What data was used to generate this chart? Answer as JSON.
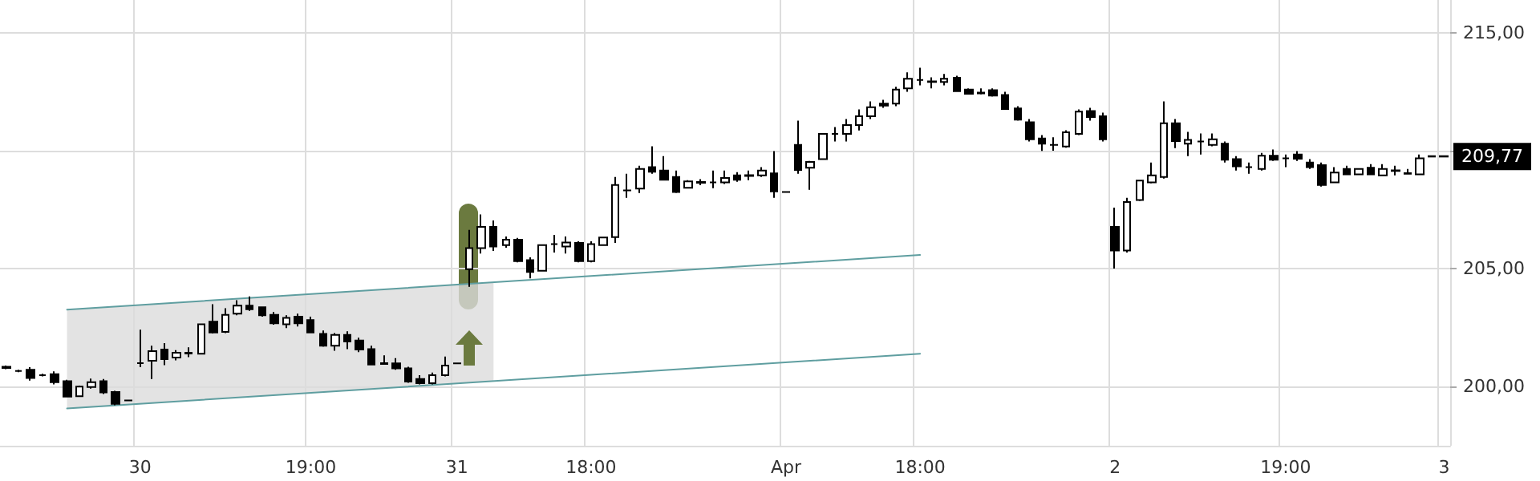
{
  "chart_data": {
    "type": "candlestick",
    "grid": true,
    "categories": [
      null,
      null,
      null,
      null,
      null,
      null,
      null,
      null,
      null,
      null,
      null,
      "30",
      null,
      null,
      null,
      null,
      null,
      null,
      null,
      null,
      null,
      null,
      null,
      null,
      null,
      "19:00",
      null,
      null,
      null,
      null,
      null,
      null,
      null,
      null,
      null,
      null,
      null,
      "31",
      null,
      null,
      null,
      null,
      null,
      null,
      null,
      null,
      null,
      null,
      "18:00",
      null,
      null,
      null,
      null,
      null,
      null,
      null,
      null,
      null,
      null,
      null,
      null,
      null,
      null,
      null,
      "Apr",
      null,
      null,
      null,
      null,
      null,
      null,
      null,
      null,
      null,
      null,
      "18:00",
      null,
      null,
      null,
      null,
      null,
      null,
      null,
      null,
      null,
      null,
      null,
      null,
      null,
      null,
      null,
      "2",
      null,
      null,
      null,
      null,
      null,
      null,
      null,
      null,
      null,
      null,
      null,
      null,
      null,
      "19:00",
      null,
      null,
      null,
      null,
      null,
      null,
      null,
      null,
      null,
      null,
      null,
      null,
      "3"
    ],
    "ylim": [
      197.5,
      216.4
    ],
    "yticks": [
      {
        "value": 200,
        "label": "200,00"
      },
      {
        "value": 205,
        "label": "205,00"
      },
      {
        "value": 210,
        "label": null
      },
      {
        "value": 215,
        "label": "215,00"
      }
    ],
    "annotations": [
      "209,77"
    ],
    "series": [
      {
        "type": "line",
        "color": "#5f9ea0",
        "values": [
          null,
          null,
          null,
          null,
          null,
          203.27,
          null,
          null,
          null,
          null,
          null,
          null,
          null,
          null,
          null,
          null,
          null,
          null,
          null,
          null,
          null,
          null,
          null,
          null,
          null,
          null,
          null,
          null,
          null,
          null,
          null,
          null,
          null,
          null,
          null,
          null,
          null,
          null,
          null,
          null,
          null,
          null,
          null,
          null,
          null,
          null,
          null,
          null,
          null,
          null,
          null,
          null,
          null,
          null,
          null,
          null,
          null,
          null,
          null,
          null,
          null,
          null,
          null,
          null,
          null,
          null,
          null,
          null,
          null,
          null,
          null,
          null,
          null,
          null,
          null,
          205.59,
          null,
          null,
          null,
          null,
          null,
          null,
          null,
          null,
          null,
          null,
          null,
          null,
          null,
          null,
          null,
          null,
          null,
          null,
          null,
          null,
          null,
          null,
          null,
          null,
          null,
          null,
          null,
          null,
          null,
          null,
          null,
          null,
          null,
          null,
          null,
          null,
          null,
          null,
          null,
          null,
          null,
          null,
          null
        ]
      },
      {
        "type": "line",
        "color": "#5f9ea0",
        "values": [
          null,
          null,
          null,
          null,
          null,
          199.08,
          null,
          null,
          null,
          null,
          null,
          null,
          null,
          null,
          null,
          null,
          null,
          null,
          null,
          null,
          null,
          null,
          null,
          null,
          null,
          null,
          null,
          null,
          null,
          null,
          null,
          null,
          null,
          null,
          null,
          null,
          null,
          null,
          null,
          null,
          null,
          null,
          null,
          null,
          null,
          null,
          null,
          null,
          null,
          null,
          null,
          null,
          null,
          null,
          null,
          null,
          null,
          null,
          null,
          null,
          null,
          null,
          null,
          null,
          null,
          null,
          null,
          null,
          null,
          null,
          null,
          null,
          null,
          null,
          null,
          201.4,
          null,
          null,
          null,
          null,
          null,
          null,
          null,
          null,
          null,
          null,
          null,
          null,
          null,
          null,
          null,
          null,
          null,
          null,
          null,
          null,
          null,
          null,
          null,
          null,
          null,
          null,
          null,
          null,
          null,
          null,
          null,
          null,
          null,
          null,
          null,
          null,
          null,
          null,
          null,
          null,
          null,
          null,
          null
        ],
        "lower": [
          null,
          null,
          null,
          null,
          null,
          199.08,
          null,
          null,
          null,
          null,
          null,
          null,
          null,
          null,
          null,
          null,
          null,
          null,
          null,
          null,
          null,
          null,
          null,
          null,
          null,
          null,
          null,
          null,
          null,
          null,
          null,
          null,
          null,
          null,
          null,
          null,
          null,
          null,
          null,
          null,
          200.24,
          null,
          null,
          null,
          null,
          null,
          null,
          null,
          null,
          null,
          null,
          null,
          null,
          null,
          null,
          null,
          null,
          null,
          null,
          null,
          null,
          null,
          null,
          null,
          null,
          null,
          null,
          null,
          null,
          null,
          null,
          null,
          null,
          null,
          null,
          null,
          null,
          null,
          null,
          null,
          null,
          null,
          null,
          null,
          null,
          null,
          null,
          null,
          null,
          null,
          null,
          null,
          null,
          null,
          null,
          null,
          null,
          null,
          null,
          null,
          null,
          null,
          null,
          null,
          null,
          null,
          null,
          null,
          null,
          null,
          null,
          null,
          null,
          null,
          null,
          null,
          null,
          null,
          null
        ],
        "upper": [
          null,
          null,
          null,
          null,
          null,
          203.27,
          null,
          null,
          null,
          null,
          null,
          null,
          null,
          null,
          null,
          null,
          null,
          null,
          null,
          null,
          null,
          null,
          null,
          null,
          null,
          null,
          null,
          null,
          null,
          null,
          null,
          null,
          null,
          null,
          null,
          null,
          null,
          null,
          null,
          null,
          204.43,
          null,
          null,
          null,
          null,
          null,
          null,
          null,
          null,
          null,
          null,
          null,
          null,
          null,
          null,
          null,
          null,
          null,
          null,
          null,
          null,
          null,
          null,
          null,
          null,
          null,
          null,
          null,
          null,
          null,
          null,
          null,
          null,
          null,
          null,
          null,
          null,
          null,
          null,
          null,
          null,
          null,
          null,
          null,
          null,
          null,
          null,
          null,
          null,
          null,
          null,
          null,
          null,
          null,
          null,
          null,
          null,
          null,
          null,
          null,
          null,
          null,
          null,
          null,
          null,
          null,
          null,
          null,
          null,
          null,
          null,
          null,
          null,
          null,
          null,
          null,
          null,
          null,
          null
        ]
      },
      {
        "type": "candlestick",
        "color": "#000000",
        "ohlc": [
          [
            200.85,
            200.9,
            200.75,
            200.8
          ],
          [
            200.67,
            200.72,
            200.62,
            200.67
          ],
          [
            200.72,
            200.83,
            200.26,
            200.37
          ],
          [
            200.49,
            200.55,
            200.44,
            200.49
          ],
          [
            200.53,
            200.65,
            200.1,
            200.19
          ],
          [
            200.24,
            200.3,
            199.55,
            199.58
          ],
          [
            199.6,
            200.05,
            199.58,
            200.01
          ],
          [
            199.99,
            200.35,
            199.92,
            200.19
          ],
          [
            200.24,
            200.33,
            199.69,
            199.76
          ],
          [
            199.78,
            199.83,
            199.22,
            199.28
          ],
          [
            199.42,
            199.42,
            199.42,
            199.42
          ],
          [
            201.0,
            202.42,
            200.83,
            201.0
          ],
          [
            201.1,
            201.74,
            200.33,
            201.51
          ],
          [
            201.58,
            201.85,
            200.92,
            201.17
          ],
          [
            201.24,
            201.55,
            201.12,
            201.44
          ],
          [
            201.44,
            201.67,
            201.26,
            201.41
          ],
          [
            201.4,
            202.65,
            201.4,
            202.65
          ],
          [
            202.76,
            203.5,
            202.26,
            202.3
          ],
          [
            202.33,
            203.33,
            202.28,
            203.05
          ],
          [
            203.1,
            203.67,
            203.03,
            203.44
          ],
          [
            203.44,
            203.83,
            203.22,
            203.29
          ],
          [
            203.37,
            203.4,
            202.97,
            203.03
          ],
          [
            203.05,
            203.17,
            202.63,
            202.69
          ],
          [
            202.65,
            203.03,
            202.49,
            202.92
          ],
          [
            202.97,
            203.1,
            202.56,
            202.69
          ],
          [
            202.83,
            202.97,
            202.28,
            202.3
          ],
          [
            202.24,
            202.39,
            201.7,
            201.74
          ],
          [
            201.74,
            202.28,
            201.53,
            202.2
          ],
          [
            202.2,
            202.35,
            201.6,
            201.92
          ],
          [
            201.96,
            202.08,
            201.47,
            201.58
          ],
          [
            201.6,
            201.74,
            200.92,
            200.94
          ],
          [
            201.0,
            201.33,
            200.97,
            200.97
          ],
          [
            200.99,
            201.21,
            200.72,
            200.78
          ],
          [
            200.78,
            200.85,
            200.17,
            200.22
          ],
          [
            200.33,
            200.49,
            200.1,
            200.15
          ],
          [
            200.15,
            200.6,
            200.1,
            200.49
          ],
          [
            200.49,
            201.28,
            200.44,
            200.9
          ],
          [
            200.99,
            200.99,
            200.99,
            200.99
          ],
          [
            204.99,
            206.65,
            204.24,
            205.88
          ],
          [
            205.88,
            207.31,
            205.65,
            206.78
          ],
          [
            206.78,
            207.05,
            205.76,
            205.95
          ],
          [
            206.01,
            206.37,
            205.9,
            206.24
          ],
          [
            206.24,
            206.31,
            205.28,
            205.33
          ],
          [
            205.37,
            205.49,
            204.6,
            204.87
          ],
          [
            204.92,
            206.01,
            204.92,
            206.01
          ],
          [
            206.05,
            206.44,
            205.69,
            206.05
          ],
          [
            205.95,
            206.37,
            205.65,
            206.12
          ],
          [
            206.1,
            206.17,
            205.28,
            205.33
          ],
          [
            205.33,
            206.17,
            205.28,
            206.05
          ],
          [
            206.01,
            206.33,
            206.01,
            206.33
          ],
          [
            206.35,
            208.9,
            206.1,
            208.56
          ],
          [
            208.33,
            209.03,
            208.01,
            208.33
          ],
          [
            208.4,
            209.37,
            208.22,
            209.24
          ],
          [
            209.31,
            210.2,
            209.03,
            209.12
          ],
          [
            209.17,
            209.78,
            208.76,
            208.78
          ],
          [
            208.9,
            209.17,
            208.22,
            208.26
          ],
          [
            208.44,
            208.76,
            208.42,
            208.71
          ],
          [
            208.68,
            208.8,
            208.55,
            208.65
          ],
          [
            208.67,
            209.17,
            208.42,
            208.67
          ],
          [
            208.67,
            209.17,
            208.6,
            208.85
          ],
          [
            208.96,
            209.1,
            208.69,
            208.78
          ],
          [
            208.97,
            209.17,
            208.76,
            208.94
          ],
          [
            208.96,
            209.31,
            208.9,
            209.17
          ],
          [
            209.05,
            209.99,
            208.01,
            208.28
          ],
          [
            208.26,
            208.26,
            208.26,
            208.26
          ],
          [
            210.26,
            211.28,
            209.03,
            209.19
          ],
          [
            209.29,
            209.58,
            208.35,
            209.53
          ],
          [
            209.65,
            210.72,
            209.65,
            210.72
          ],
          [
            210.72,
            211.01,
            210.4,
            210.72
          ],
          [
            210.72,
            211.35,
            210.4,
            211.1
          ],
          [
            211.1,
            211.76,
            210.87,
            211.47
          ],
          [
            211.47,
            212.1,
            211.35,
            211.85
          ],
          [
            212.01,
            212.17,
            211.83,
            211.92
          ],
          [
            212.01,
            212.72,
            211.9,
            212.6
          ],
          [
            212.65,
            213.33,
            212.51,
            213.06
          ],
          [
            213.01,
            213.53,
            212.78,
            213.01
          ],
          [
            212.95,
            213.12,
            212.65,
            212.92
          ],
          [
            212.92,
            213.26,
            212.78,
            213.06
          ],
          [
            213.1,
            213.19,
            212.51,
            212.53
          ],
          [
            212.6,
            212.65,
            212.4,
            212.42
          ],
          [
            212.47,
            212.65,
            212.4,
            212.44
          ],
          [
            212.58,
            212.65,
            212.3,
            212.35
          ],
          [
            212.37,
            212.51,
            211.76,
            211.78
          ],
          [
            211.8,
            211.9,
            211.28,
            211.33
          ],
          [
            211.22,
            211.35,
            210.4,
            210.49
          ],
          [
            210.53,
            210.67,
            210.0,
            210.31
          ],
          [
            210.26,
            210.58,
            210.01,
            210.26
          ],
          [
            210.19,
            210.88,
            210.14,
            210.79
          ],
          [
            210.72,
            211.76,
            210.67,
            211.67
          ],
          [
            211.69,
            211.83,
            211.28,
            211.44
          ],
          [
            211.47,
            211.62,
            210.4,
            210.49
          ],
          [
            206.78,
            207.6,
            205.01,
            205.78
          ],
          [
            205.78,
            208.01,
            205.69,
            207.83
          ],
          [
            207.92,
            208.78,
            207.88,
            208.74
          ],
          [
            208.67,
            209.51,
            208.62,
            208.96
          ],
          [
            208.9,
            212.1,
            208.83,
            211.17
          ],
          [
            211.17,
            211.35,
            210.12,
            210.42
          ],
          [
            210.31,
            210.81,
            209.78,
            210.47
          ],
          [
            210.4,
            210.74,
            209.85,
            210.4
          ],
          [
            210.26,
            210.74,
            210.2,
            210.49
          ],
          [
            210.31,
            210.4,
            209.51,
            209.63
          ],
          [
            209.65,
            209.78,
            209.17,
            209.35
          ],
          [
            209.31,
            209.51,
            209.03,
            209.31
          ],
          [
            209.24,
            209.92,
            209.17,
            209.8
          ],
          [
            209.8,
            210.06,
            209.58,
            209.63
          ],
          [
            209.69,
            209.85,
            209.31,
            209.69
          ],
          [
            209.85,
            209.99,
            209.58,
            209.67
          ],
          [
            209.51,
            209.65,
            209.24,
            209.31
          ],
          [
            209.4,
            209.51,
            208.49,
            208.56
          ],
          [
            208.67,
            209.31,
            208.67,
            209.08
          ],
          [
            209.24,
            209.37,
            209.01,
            209.01
          ],
          [
            209.01,
            209.24,
            209.01,
            209.24
          ],
          [
            209.29,
            209.44,
            209.01,
            209.01
          ],
          [
            208.96,
            209.44,
            208.96,
            209.24
          ],
          [
            209.18,
            209.37,
            208.96,
            209.15
          ],
          [
            209.06,
            209.24,
            209.03,
            209.03
          ],
          [
            209.01,
            209.85,
            209.01,
            209.69
          ],
          [
            209.78,
            209.78,
            209.76,
            209.76
          ],
          [
            209.78,
            209.78,
            209.76,
            209.76
          ]
        ]
      }
    ]
  }
}
